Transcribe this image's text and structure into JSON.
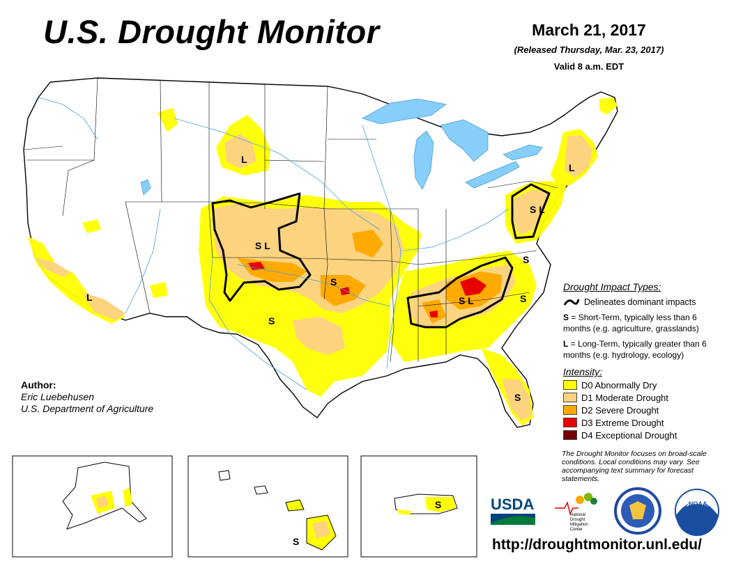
{
  "header": {
    "title": "U.S. Drought Monitor",
    "date": "March 21, 2017",
    "released": "(Released Thursday, Mar. 23, 2017)",
    "valid": "Valid 8 a.m. EDT"
  },
  "legend": {
    "impact_heading": "Drought Impact Types:",
    "delineates": "Delineates dominant impacts",
    "short_term_letter": "S",
    "short_term_text": "= Short-Term, typically less than 6 months (e.g. agriculture, grasslands)",
    "long_term_letter": "L",
    "long_term_text": "= Long-Term, typically greater than 6 months (e.g. hydrology, ecology)",
    "intensity_heading": "Intensity:",
    "intensity": [
      {
        "label": "D0 Abnormally Dry",
        "color": "#ffff00"
      },
      {
        "label": "D1 Moderate Drought",
        "color": "#fcd37f"
      },
      {
        "label": "D2 Severe Drought",
        "color": "#ffaa00"
      },
      {
        "label": "D3 Extreme Drought",
        "color": "#e60000"
      },
      {
        "label": "D4 Exceptional Drought",
        "color": "#730000"
      }
    ]
  },
  "author": {
    "heading": "Author:",
    "name": "Eric Luebehusen",
    "org": "U.S. Department of Agriculture"
  },
  "note": "The Drought Monitor focuses on broad-scale conditions. Local conditions may vary. See accompanying text summary for forecast statements.",
  "logos": {
    "usda": "USDA",
    "ndmc_1": "National",
    "ndmc_2": "Drought",
    "ndmc_3": "Mitigation",
    "ndmc_4": "Center",
    "noaa": "NOAA"
  },
  "url": "http://droughtmonitor.unl.edu/",
  "map_labels": {
    "mt_l": "L",
    "co_sl": "S L",
    "ca_l": "L",
    "ks_s": "S",
    "tx_s": "S",
    "tn_sl": "S L",
    "va_s": "S",
    "sc_s": "S",
    "ne_l": "L",
    "pa_sl": "S L",
    "fl_s": "S",
    "hi_s": "S",
    "pr_s": "S"
  },
  "colors": {
    "water": "#87cefa",
    "river": "#4a9fdc",
    "border": "#000000"
  }
}
